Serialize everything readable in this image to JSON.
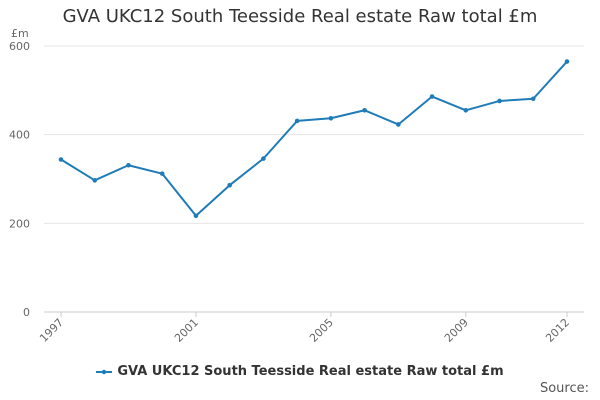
{
  "chart_data": {
    "type": "line",
    "title": "GVA UKC12 South Teesside Real estate Raw total £m",
    "ylabel": "£m",
    "xlabel": "",
    "x": [
      1997,
      1998,
      1999,
      2000,
      2001,
      2002,
      2003,
      2004,
      2005,
      2006,
      2007,
      2008,
      2009,
      2010,
      2011,
      2012
    ],
    "x_tick_labels": [
      "1997",
      "2001",
      "2005",
      "2009",
      "2012"
    ],
    "x_ticks": [
      1997,
      2001,
      2005,
      2009,
      2012
    ],
    "y_ticks": [
      0,
      200,
      400,
      600
    ],
    "y_tick_labels": [
      "0",
      "200",
      "400",
      "600"
    ],
    "ylim": [
      0,
      600
    ],
    "grid": true,
    "legend_position": "bottom",
    "series": [
      {
        "name": "GVA UKC12 South Teesside Real estate Raw total £m",
        "color": "#1f7cb8",
        "values": [
          344,
          297,
          331,
          312,
          217,
          286,
          346,
          431,
          437,
          455,
          423,
          486,
          455,
          476,
          481,
          565
        ]
      }
    ]
  },
  "source_label": "Source:"
}
